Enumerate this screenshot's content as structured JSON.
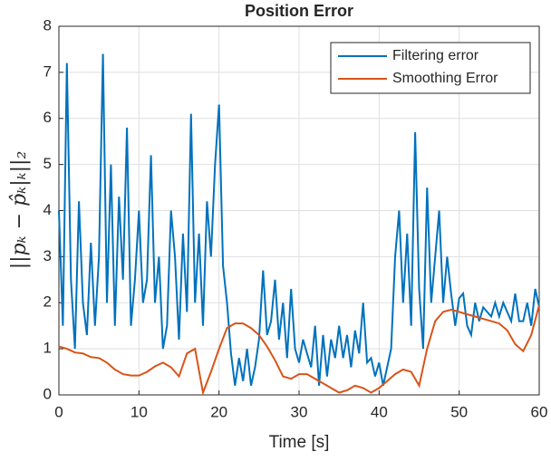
{
  "chart_data": {
    "type": "line",
    "title": "Position Error",
    "x_label": "Time [s]",
    "y_label": "||pₖ − p̂ₖ|ₖ||₂",
    "xlim": [
      0,
      60
    ],
    "xticks": [
      0,
      10,
      20,
      30,
      40,
      50,
      60
    ],
    "ylim": [
      0,
      8
    ],
    "yticks": [
      0,
      1,
      2,
      3,
      4,
      5,
      6,
      7,
      8
    ],
    "grid": true,
    "legend": "northeast",
    "series": [
      {
        "name": "Filtering error",
        "color": "#0072bd",
        "x": [
          0,
          0.5,
          1,
          1.5,
          2,
          2.5,
          3,
          3.5,
          4,
          4.5,
          5,
          5.5,
          6,
          6.5,
          7,
          7.5,
          8,
          8.5,
          9,
          9.5,
          10,
          10.5,
          11,
          11.5,
          12,
          12.5,
          13,
          13.5,
          14,
          14.5,
          15,
          15.5,
          16,
          16.5,
          17,
          17.5,
          18,
          18.5,
          19,
          19.5,
          20,
          20.5,
          21,
          21.5,
          22,
          22.5,
          23,
          23.5,
          24,
          24.5,
          25,
          25.5,
          26,
          26.5,
          27,
          27.5,
          28,
          28.5,
          29,
          29.5,
          30,
          30.5,
          31,
          31.5,
          32,
          32.5,
          33,
          33.5,
          34,
          34.5,
          35,
          35.5,
          36,
          36.5,
          37,
          37.5,
          38,
          38.5,
          39,
          39.5,
          40,
          40.5,
          41,
          41.5,
          42,
          42.5,
          43,
          43.5,
          44,
          44.5,
          45,
          45.5,
          46,
          46.5,
          47,
          47.5,
          48,
          48.5,
          49,
          49.5,
          50,
          50.5,
          51,
          51.5,
          52,
          52.5,
          53,
          53.5,
          54,
          54.5,
          55,
          55.5,
          56,
          56.5,
          57,
          57.5,
          58,
          58.5,
          59,
          59.5,
          60
        ],
        "values": [
          4.0,
          1.5,
          7.2,
          2.5,
          1.0,
          4.2,
          2.0,
          1.3,
          3.3,
          1.5,
          3.0,
          7.4,
          2.0,
          5.0,
          1.5,
          4.3,
          2.5,
          5.8,
          1.5,
          2.5,
          4.0,
          2.0,
          2.5,
          5.2,
          2.0,
          3.0,
          1.0,
          1.5,
          4.0,
          3.0,
          1.2,
          3.5,
          1.8,
          6.1,
          2.0,
          3.5,
          1.5,
          4.2,
          3.0,
          5.0,
          6.3,
          2.8,
          2.0,
          0.9,
          0.2,
          0.8,
          0.3,
          1.0,
          0.2,
          0.6,
          1.2,
          2.7,
          1.3,
          1.6,
          2.5,
          1.2,
          2.0,
          0.8,
          2.3,
          1.0,
          0.7,
          1.2,
          0.9,
          0.6,
          1.5,
          0.2,
          1.3,
          0.4,
          1.2,
          0.8,
          1.5,
          0.8,
          1.3,
          0.6,
          1.4,
          0.9,
          2.0,
          0.7,
          0.8,
          0.4,
          0.7,
          0.2,
          0.6,
          1.0,
          3.0,
          4.0,
          2.0,
          3.5,
          1.5,
          5.7,
          2.3,
          1.0,
          4.5,
          2.0,
          3.0,
          4.0,
          2.0,
          3.0,
          2.2,
          1.5,
          2.1,
          2.2,
          1.5,
          1.3,
          2.0,
          1.6,
          1.9,
          1.8,
          1.7,
          2.0,
          1.7,
          2.0,
          1.8,
          1.6,
          2.2,
          1.6,
          1.6,
          2.0,
          1.5,
          2.3,
          1.9
        ]
      },
      {
        "name": "Smoothing Error",
        "color": "#d95319",
        "x": [
          0,
          1,
          2,
          3,
          4,
          5,
          6,
          7,
          8,
          9,
          10,
          11,
          12,
          13,
          14,
          15,
          16,
          17,
          18,
          19,
          20,
          21,
          22,
          23,
          24,
          25,
          26,
          27,
          28,
          29,
          30,
          31,
          32,
          33,
          34,
          35,
          36,
          37,
          38,
          39,
          40,
          41,
          42,
          43,
          44,
          45,
          46,
          47,
          48,
          49,
          50,
          51,
          52,
          53,
          54,
          55,
          56,
          57,
          58,
          59,
          60
        ],
        "values": [
          1.05,
          1.0,
          0.92,
          0.9,
          0.82,
          0.8,
          0.7,
          0.55,
          0.45,
          0.42,
          0.42,
          0.5,
          0.62,
          0.7,
          0.6,
          0.4,
          0.9,
          1.0,
          0.05,
          0.5,
          1.0,
          1.45,
          1.55,
          1.55,
          1.45,
          1.3,
          1.05,
          0.75,
          0.4,
          0.35,
          0.45,
          0.45,
          0.35,
          0.25,
          0.15,
          0.05,
          0.1,
          0.2,
          0.15,
          0.05,
          0.15,
          0.3,
          0.45,
          0.55,
          0.5,
          0.2,
          1.0,
          1.6,
          1.8,
          1.85,
          1.8,
          1.75,
          1.7,
          1.65,
          1.6,
          1.55,
          1.4,
          1.1,
          0.95,
          1.3,
          1.95
        ]
      }
    ]
  }
}
